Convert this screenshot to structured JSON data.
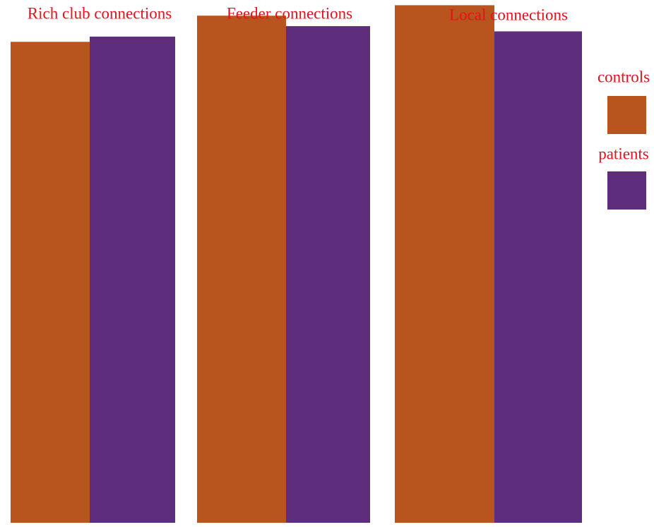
{
  "chart_data": {
    "type": "bar",
    "categories": [
      "Rich club connections",
      "Feeder connections",
      "Local connections"
    ],
    "series": [
      {
        "name": "controls",
        "color": "#B8541D",
        "values": [
          0.92,
          0.97,
          0.99
        ]
      },
      {
        "name": "patients",
        "color": "#5E2E7C",
        "values": [
          0.93,
          0.95,
          0.94
        ]
      }
    ],
    "ylim": [
      0,
      1
    ],
    "grid": false,
    "axes_visible": false,
    "legend_position": "right",
    "label_color": "#E8101C"
  }
}
